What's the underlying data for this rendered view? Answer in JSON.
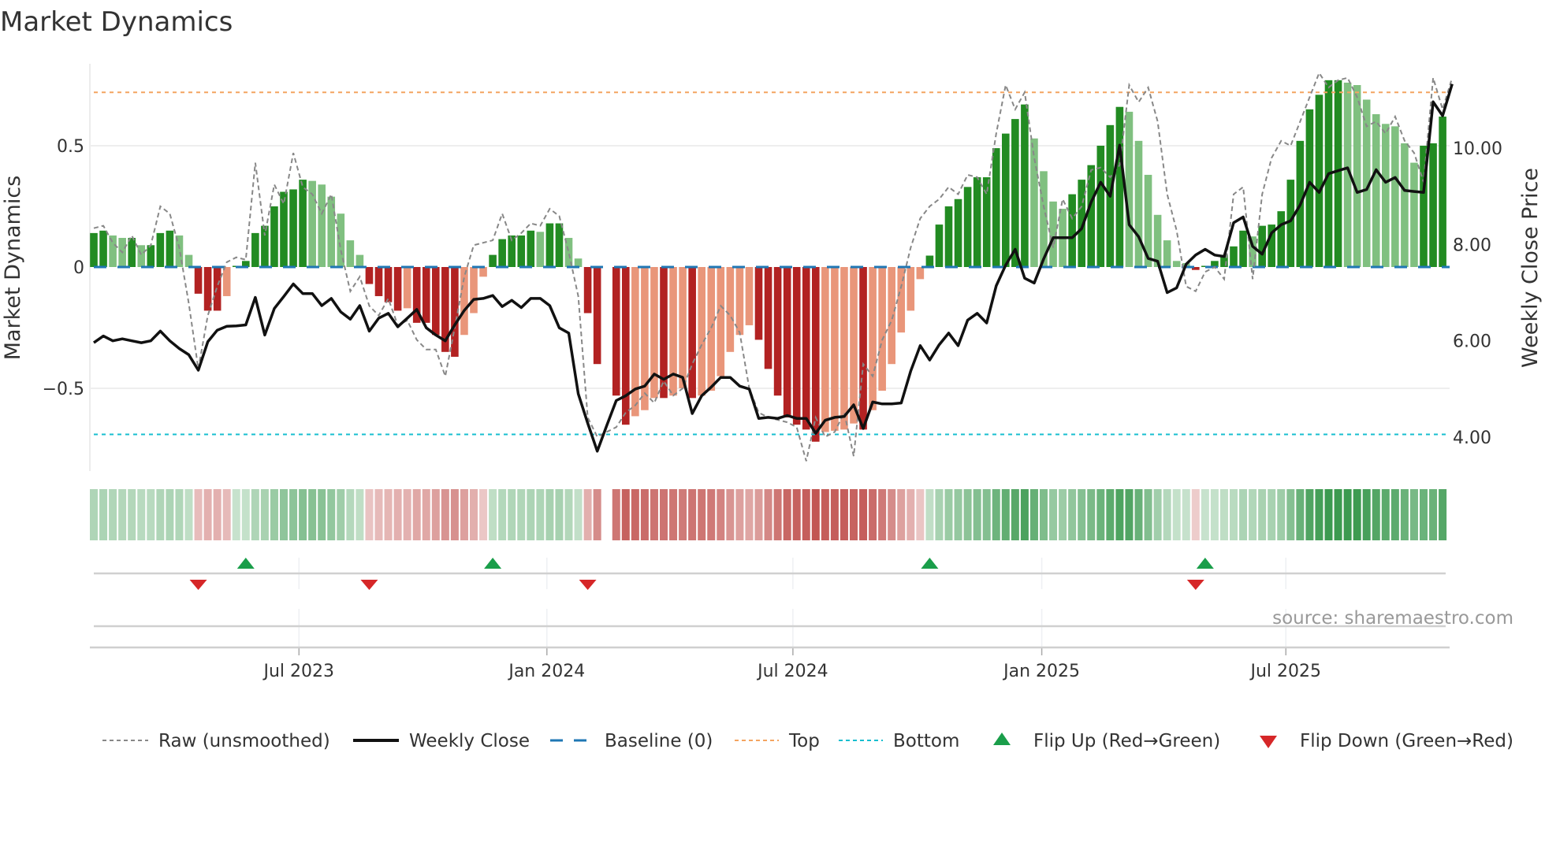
{
  "chart_data": {
    "type": "bar",
    "title": "Market Dynamics",
    "ylabel": "Market Dynamics",
    "y2label": "Weekly Close Price",
    "ylim": [
      -0.85,
      0.85
    ],
    "y2lim": [
      3.4,
      12.3
    ],
    "yticks": [
      {
        "v": 0.5,
        "label": "0.5"
      },
      {
        "v": 0,
        "label": "0"
      },
      {
        "v": -0.5,
        "label": "−0.5"
      }
    ],
    "y2ticks": [
      {
        "v": 10,
        "label": "10.00"
      },
      {
        "v": 8,
        "label": "8.00"
      },
      {
        "v": 6,
        "label": "6.00"
      },
      {
        "v": 4,
        "label": "4.00"
      }
    ],
    "xticks": [
      {
        "week": 21.6,
        "label": "Jul 2023"
      },
      {
        "week": 47.7,
        "label": "Jan 2024"
      },
      {
        "week": 73.6,
        "label": "Jul 2024"
      },
      {
        "week": 99.8,
        "label": "Jan 2025"
      },
      {
        "week": 125.5,
        "label": "Jul 2025"
      }
    ],
    "top_level": 0.72,
    "bottom_level": -0.69,
    "baseline": 0,
    "momentum": [
      0.14,
      0.15,
      0.13,
      0.12,
      0.12,
      0.09,
      0.09,
      0.14,
      0.15,
      0.13,
      0.05,
      -0.11,
      -0.18,
      -0.18,
      -0.12,
      0.005,
      0.025,
      0.14,
      0.17,
      0.25,
      0.31,
      0.32,
      0.36,
      0.355,
      0.34,
      0.29,
      0.22,
      0.11,
      0.05,
      -0.07,
      -0.12,
      -0.145,
      -0.18,
      -0.17,
      -0.23,
      -0.23,
      -0.28,
      -0.35,
      -0.37,
      -0.28,
      -0.19,
      -0.04,
      0.05,
      0.115,
      0.13,
      0.13,
      0.15,
      0.145,
      0.18,
      0.18,
      0.12,
      0.035,
      -0.19,
      -0.4,
      null,
      -0.53,
      -0.65,
      -0.615,
      -0.59,
      -0.54,
      -0.54,
      -0.53,
      -0.5,
      -0.54,
      -0.53,
      -0.51,
      -0.45,
      -0.35,
      -0.28,
      -0.24,
      -0.3,
      -0.42,
      -0.53,
      -0.62,
      -0.65,
      -0.67,
      -0.72,
      -0.68,
      -0.675,
      -0.67,
      -0.645,
      -0.67,
      -0.59,
      -0.51,
      -0.4,
      -0.27,
      -0.18,
      -0.05,
      0.047,
      0.175,
      0.25,
      0.28,
      0.33,
      0.37,
      0.37,
      0.49,
      0.55,
      0.61,
      0.67,
      0.53,
      0.395,
      0.27,
      0.24,
      0.3,
      0.36,
      0.42,
      0.5,
      0.585,
      0.66,
      0.64,
      0.52,
      0.38,
      0.215,
      0.11,
      0.025,
      0.016,
      -0.012,
      0.005,
      0.025,
      0.05,
      0.085,
      0.15,
      0.126,
      0.17,
      0.175,
      0.23,
      0.36,
      0.52,
      0.65,
      0.71,
      0.77,
      0.77,
      0.76,
      0.75,
      0.69,
      0.63,
      0.59,
      0.58,
      0.51,
      0.43,
      0.5,
      0.51,
      0.62
    ],
    "raw": [
      0.16,
      0.17,
      0.1,
      0.06,
      0.13,
      0.05,
      0.09,
      0.25,
      0.22,
      0.08,
      -0.15,
      -0.42,
      -0.2,
      -0.08,
      0.02,
      0.04,
      0.03,
      0.43,
      0.13,
      0.34,
      0.26,
      0.47,
      0.33,
      0.3,
      0.22,
      0.3,
      0.07,
      -0.1,
      -0.04,
      -0.16,
      -0.2,
      -0.13,
      -0.24,
      -0.22,
      -0.3,
      -0.34,
      -0.34,
      -0.45,
      -0.25,
      -0.04,
      0.09,
      0.1,
      0.11,
      0.22,
      0.11,
      0.14,
      0.18,
      0.17,
      0.24,
      0.21,
      0.06,
      -0.12,
      -0.62,
      -0.7,
      -0.68,
      -0.66,
      -0.6,
      -0.57,
      -0.52,
      -0.56,
      -0.47,
      -0.53,
      -0.5,
      -0.4,
      -0.32,
      -0.25,
      -0.16,
      -0.2,
      -0.27,
      -0.5,
      -0.6,
      -0.62,
      -0.63,
      -0.64,
      -0.66,
      -0.8,
      -0.62,
      -0.7,
      -0.68,
      -0.6,
      -0.78,
      -0.4,
      -0.45,
      -0.3,
      -0.22,
      -0.08,
      0.08,
      0.2,
      0.25,
      0.28,
      0.33,
      0.3,
      0.38,
      0.37,
      0.3,
      0.55,
      0.75,
      0.65,
      0.72,
      0.45,
      0.25,
      0.08,
      0.28,
      0.2,
      0.25,
      0.4,
      0.41,
      0.37,
      0.42,
      0.75,
      0.68,
      0.74,
      0.6,
      0.3,
      0.15,
      -0.08,
      -0.1,
      -0.02,
      0.0,
      -0.05,
      0.3,
      0.33,
      -0.05,
      0.3,
      0.45,
      0.52,
      0.5,
      0.6,
      0.7,
      0.8,
      0.74,
      0.77,
      0.78,
      0.7,
      0.58,
      0.6,
      0.55,
      0.62,
      0.52,
      0.47,
      0.35,
      0.78,
      0.65,
      0.78
    ],
    "weekly_close": [
      5.96,
      6.1,
      6.0,
      6.04,
      6.0,
      5.96,
      6.0,
      6.2,
      6.0,
      5.84,
      5.71,
      5.39,
      5.98,
      6.22,
      6.3,
      6.31,
      6.33,
      6.9,
      6.12,
      6.67,
      6.92,
      7.18,
      6.98,
      6.98,
      6.73,
      6.88,
      6.6,
      6.45,
      6.73,
      6.2,
      6.47,
      6.57,
      6.29,
      6.47,
      6.65,
      6.27,
      6.12,
      6.0,
      6.33,
      6.63,
      6.86,
      6.88,
      6.94,
      6.71,
      6.84,
      6.69,
      6.88,
      6.88,
      6.73,
      6.27,
      6.16,
      4.9,
      4.29,
      3.71,
      4.24,
      4.76,
      4.86,
      5.0,
      5.06,
      5.31,
      5.2,
      5.31,
      5.24,
      4.49,
      4.86,
      5.04,
      5.24,
      5.24,
      5.06,
      5.0,
      4.39,
      4.41,
      4.39,
      4.45,
      4.39,
      4.39,
      4.08,
      4.35,
      4.41,
      4.43,
      4.67,
      4.18,
      4.73,
      4.69,
      4.69,
      4.71,
      5.37,
      5.9,
      5.6,
      5.92,
      6.16,
      5.9,
      6.43,
      6.57,
      6.37,
      7.14,
      7.57,
      7.9,
      7.3,
      7.2,
      7.7,
      8.14,
      8.14,
      8.14,
      8.33,
      8.88,
      9.29,
      9.0,
      10.06,
      8.41,
      8.16,
      7.71,
      7.65,
      7.0,
      7.1,
      7.59,
      7.78,
      7.9,
      7.78,
      7.75,
      8.45,
      8.57,
      7.96,
      7.8,
      8.24,
      8.41,
      8.49,
      8.82,
      9.29,
      9.08,
      9.47,
      9.53,
      9.59,
      9.08,
      9.14,
      9.55,
      9.29,
      9.39,
      9.12,
      9.1,
      9.08,
      10.96,
      10.67,
      11.33
    ],
    "flip_up_weeks": [
      16,
      42,
      88,
      117
    ],
    "flip_down_weeks": [
      11,
      29,
      52,
      116
    ],
    "legend": [
      "Raw (unsmoothed)",
      "Weekly Close",
      "Baseline (0)",
      "Top",
      "Bottom",
      "Flip Up (Red→Green)",
      "Flip Down (Green→Red)"
    ],
    "legend_placement": "bottom",
    "source": "source: sharemaestro.com",
    "colors": {
      "green_dark": "#228b22",
      "green_light": "#80c080",
      "red_dark": "#b22222",
      "red_light": "#e9967a",
      "price": "#111111",
      "raw": "#888888",
      "baseline": "#1f77b4",
      "top": "#f4a460",
      "bottom": "#17becf",
      "flip_up": "#1a9e4a",
      "flip_down": "#d62728"
    }
  }
}
